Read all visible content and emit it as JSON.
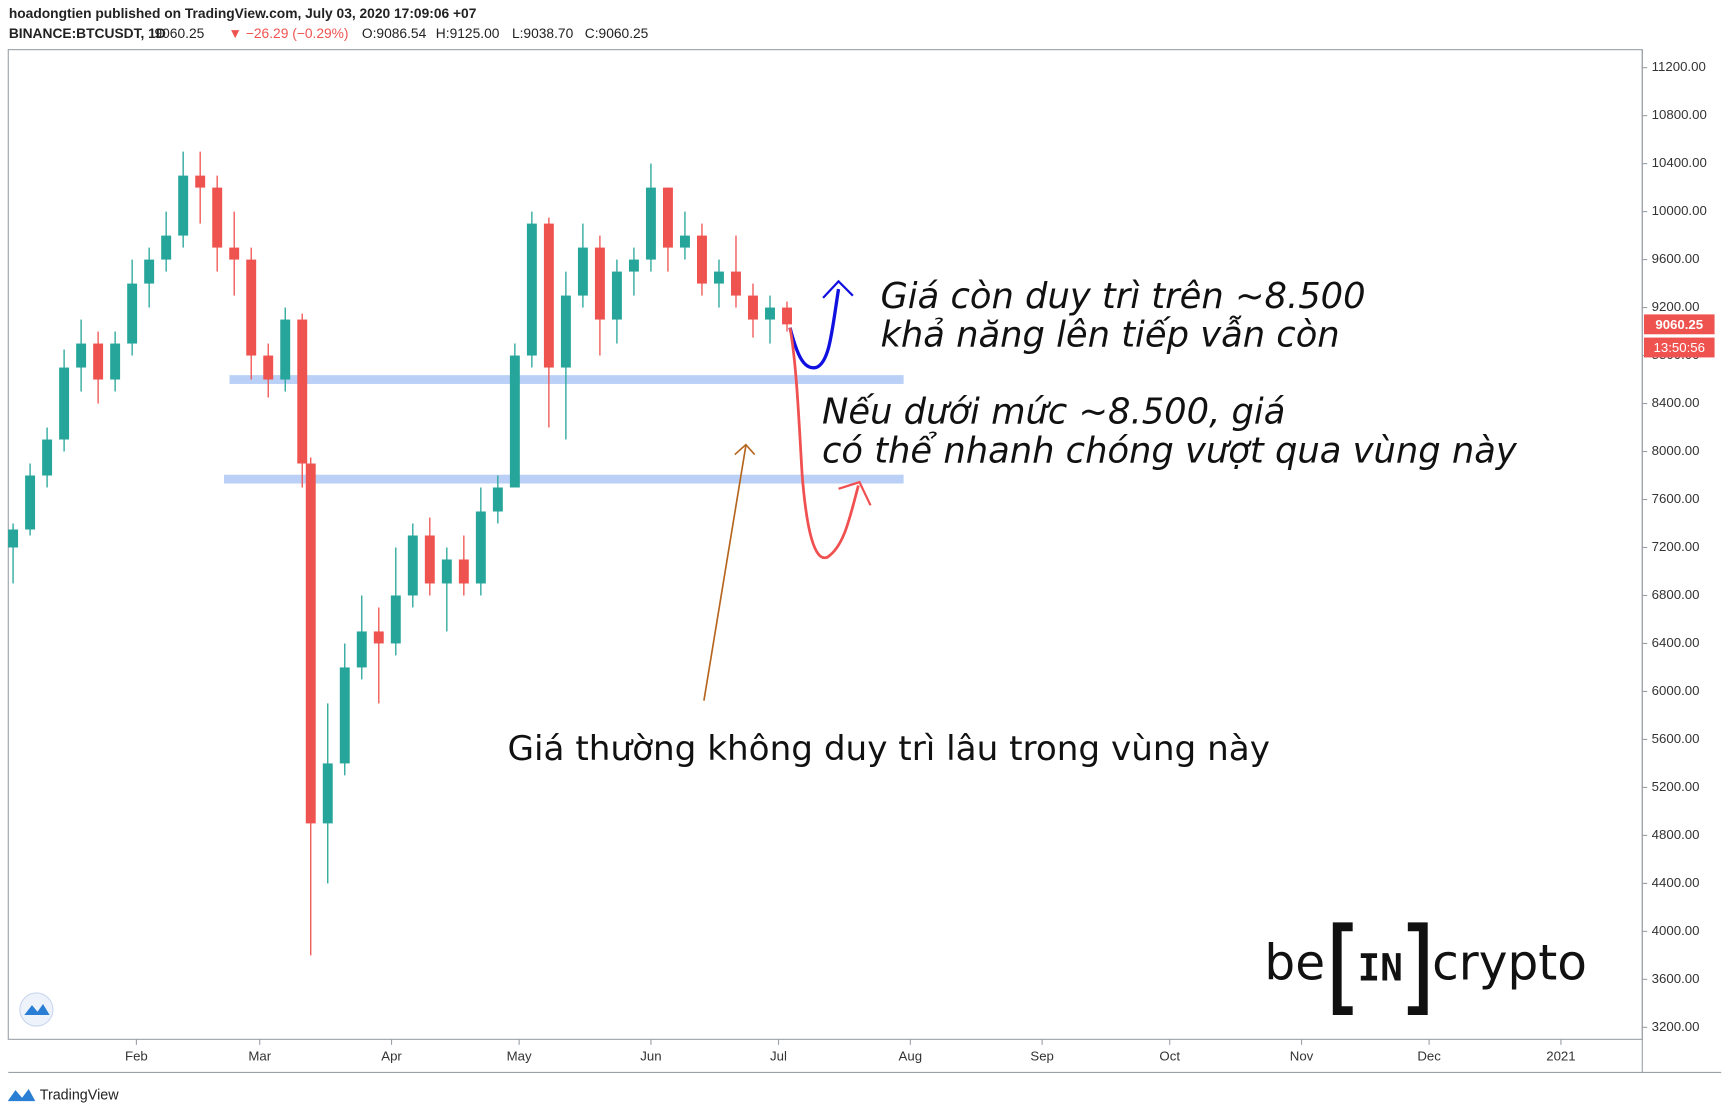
{
  "header": {
    "publisher": "hoadongtien published on TradingView.com, July 03, 2020 17:09:06 +07",
    "symbol": "BINANCE:BTCUSDT, 1D",
    "last": "9060.25",
    "change": "▼ −26.29 (−0.29%)",
    "open": "O:9086.54",
    "high": "H:9125.00",
    "low": "L:9038.70",
    "close": "C:9060.25"
  },
  "chart_data": {
    "type": "candlestick",
    "x": [
      2,
      6,
      10,
      14,
      18,
      22,
      26,
      30,
      34,
      38,
      42,
      46,
      50,
      54,
      58,
      62,
      66,
      70,
      72,
      76,
      80,
      84,
      88,
      92,
      96,
      100,
      104,
      108,
      112,
      116,
      120,
      124,
      128,
      132,
      136,
      140,
      144,
      148,
      152,
      156,
      160,
      164,
      168,
      172,
      176,
      180,
      184
    ],
    "open": [
      7200,
      7350,
      7800,
      8100,
      8700,
      8900,
      8600,
      8900,
      9400,
      9600,
      9800,
      10300,
      10200,
      9700,
      9600,
      8800,
      8600,
      9100,
      7900,
      4900,
      5400,
      6200,
      6500,
      6400,
      6800,
      7300,
      6900,
      7100,
      6900,
      7500,
      7700,
      8800,
      9900,
      8700,
      9300,
      9700,
      9100,
      9500,
      9600,
      10200,
      9700,
      9800,
      9400,
      9500,
      9300,
      9100,
      9200
    ],
    "high": [
      7400,
      7900,
      8200,
      8850,
      9100,
      9000,
      9000,
      9600,
      9700,
      10000,
      10500,
      10500,
      10300,
      10000,
      9700,
      8900,
      9200,
      9150,
      7950,
      5900,
      6400,
      6800,
      6700,
      7200,
      7400,
      7450,
      7200,
      7300,
      7700,
      7800,
      8900,
      10000,
      9950,
      9500,
      9900,
      9800,
      9600,
      9700,
      10400,
      10200,
      10000,
      9900,
      9600,
      9800,
      9400,
      9300,
      9250
    ],
    "low": [
      6900,
      7300,
      7700,
      8000,
      8500,
      8400,
      8500,
      8800,
      9200,
      9500,
      9700,
      9900,
      9500,
      9300,
      8600,
      8450,
      8500,
      7700,
      3800,
      4400,
      5300,
      6100,
      5900,
      6300,
      6700,
      6800,
      6500,
      6800,
      6800,
      7400,
      7700,
      8700,
      8200,
      8100,
      9200,
      8800,
      8900,
      9300,
      9500,
      9500,
      9600,
      9300,
      9200,
      9200,
      8950,
      8900,
      9000
    ],
    "close": [
      7350,
      7800,
      8100,
      8700,
      8900,
      8600,
      8900,
      9400,
      9600,
      9800,
      10300,
      10200,
      9700,
      9600,
      8800,
      8600,
      9100,
      7900,
      4900,
      5400,
      6200,
      6500,
      6400,
      6800,
      7300,
      6900,
      7100,
      6900,
      7500,
      7700,
      8800,
      9900,
      8700,
      9300,
      9700,
      9100,
      9500,
      9600,
      10200,
      9700,
      9800,
      9400,
      9500,
      9300,
      9100,
      9200,
      9060
    ],
    "up_color": "#26a69a",
    "down_color": "#ef5350",
    "levels": [
      8600,
      7770
    ],
    "level_color": "#a9c4f5",
    "price_tag": {
      "value": 9060.25,
      "label": "9060.25"
    },
    "countdown": "13:50:56",
    "xlim": [
      1,
      385
    ],
    "xticks": [
      {
        "value": 31,
        "label": "Feb"
      },
      {
        "value": 60,
        "label": "Mar"
      },
      {
        "value": 91,
        "label": "Apr"
      },
      {
        "value": 121,
        "label": "May"
      },
      {
        "value": 152,
        "label": "Jun"
      },
      {
        "value": 182,
        "label": "Jul"
      },
      {
        "value": 213,
        "label": "Aug"
      },
      {
        "value": 244,
        "label": "Sep"
      },
      {
        "value": 274,
        "label": "Oct"
      },
      {
        "value": 305,
        "label": "Nov"
      },
      {
        "value": 335,
        "label": "Dec"
      },
      {
        "value": 366,
        "label": "2021"
      }
    ],
    "ylim": [
      3100,
      11350
    ],
    "yticks": [
      {
        "value": 3200,
        "label": "3200.00"
      },
      {
        "value": 3600,
        "label": "3600.00"
      },
      {
        "value": 4000,
        "label": "4000.00"
      },
      {
        "value": 4400,
        "label": "4400.00"
      },
      {
        "value": 4800,
        "label": "4800.00"
      },
      {
        "value": 5200,
        "label": "5200.00"
      },
      {
        "value": 5600,
        "label": "5600.00"
      },
      {
        "value": 6000,
        "label": "6000.00"
      },
      {
        "value": 6400,
        "label": "6400.00"
      },
      {
        "value": 6800,
        "label": "6800.00"
      },
      {
        "value": 7200,
        "label": "7200.00"
      },
      {
        "value": 7600,
        "label": "7600.00"
      },
      {
        "value": 8000,
        "label": "8000.00"
      },
      {
        "value": 8400,
        "label": "8400.00"
      },
      {
        "value": 8800,
        "label": "8800.00"
      },
      {
        "value": 9200,
        "label": "9200.00"
      },
      {
        "value": 9600,
        "label": "9600.00"
      },
      {
        "value": 10000,
        "label": "10000.00"
      },
      {
        "value": 10400,
        "label": "10400.00"
      },
      {
        "value": 10800,
        "label": "10800.00"
      },
      {
        "value": 11200,
        "label": "11200.00"
      }
    ],
    "annotations": [
      "Giá còn duy trì trên ~8.500",
      "khả năng lên tiếp vẫn còn",
      "Nếu dưới mức ~8.500, giá",
      "có thể nhanh chóng vượt qua vùng này",
      "Giá thường không duy trì lâu trong vùng này"
    ]
  },
  "logo": {
    "left": "be",
    "middle": "IN",
    "right": "crypto"
  },
  "footer": "TradingView"
}
